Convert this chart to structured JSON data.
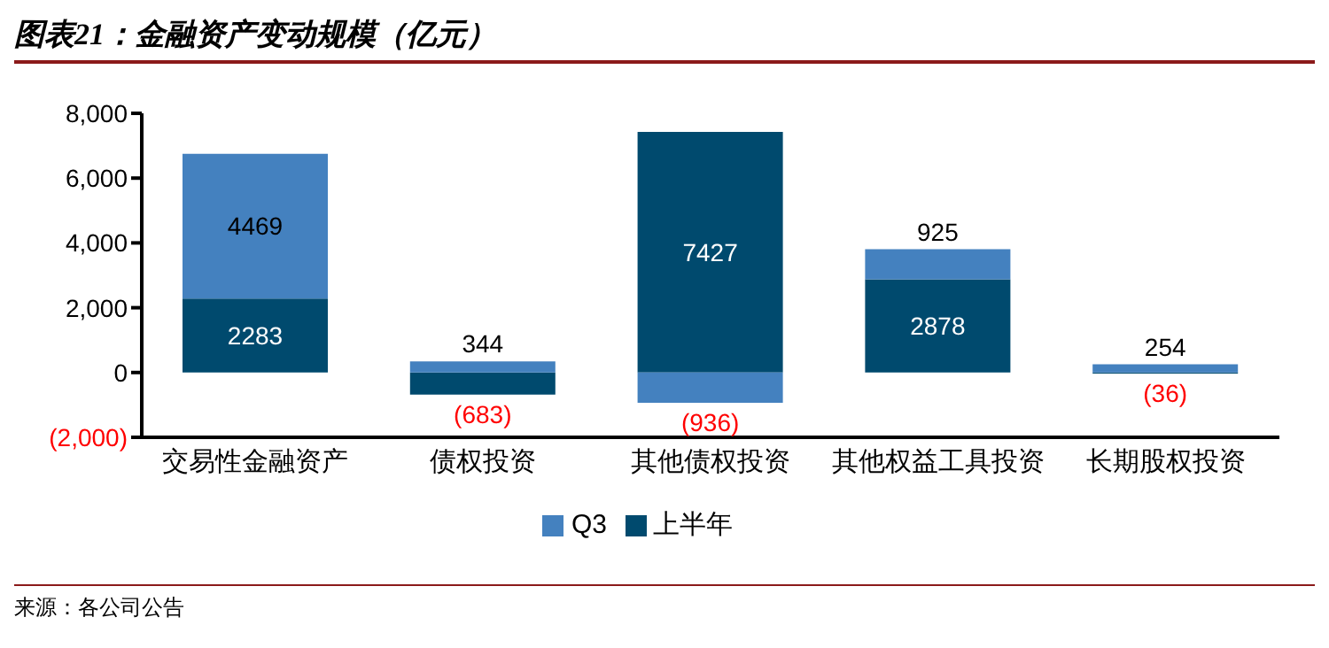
{
  "chart_data": {
    "type": "bar",
    "title": "图表21：金融资产变动规模（亿元）",
    "categories": [
      "交易性金融资产",
      "债权投资",
      "其他债权投资",
      "其他权益工具投资",
      "长期股权投资"
    ],
    "stacked": true,
    "series": [
      {
        "name": "上半年",
        "color": "#004a6e",
        "values": [
          2283,
          -683,
          7427,
          2878,
          -36
        ],
        "value_labels": [
          "2283",
          "(683)",
          "7427",
          "2878",
          "(36)"
        ]
      },
      {
        "name": "Q3",
        "color": "#4481bf",
        "values": [
          4469,
          344,
          -936,
          925,
          254
        ],
        "value_labels": [
          "4469",
          "344",
          "(936)",
          "925",
          "254"
        ]
      }
    ],
    "ylim": [
      -2000,
      8000
    ],
    "yticks": [
      {
        "value": -2000,
        "label": "(2,000)"
      },
      {
        "value": 0,
        "label": "0"
      },
      {
        "value": 2000,
        "label": "2,000"
      },
      {
        "value": 4000,
        "label": "4,000"
      },
      {
        "value": 6000,
        "label": "6,000"
      },
      {
        "value": 8000,
        "label": "8,000"
      }
    ],
    "grid": false,
    "legend": "bottom",
    "annotations": [
      "来源：各公司公告"
    ]
  }
}
